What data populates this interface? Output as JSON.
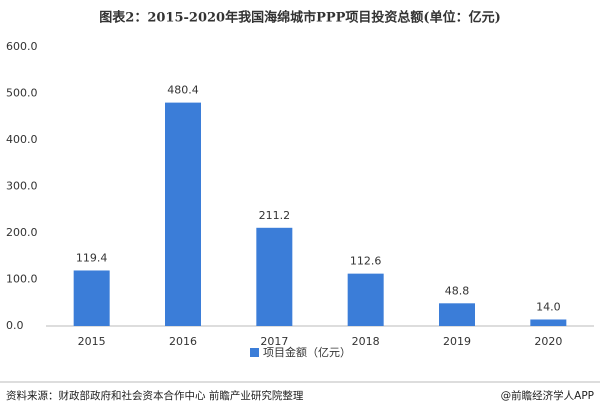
{
  "chart_data": {
    "type": "bar",
    "title": "图表2：2015-2020年我国海绵城市PPP项目投资总额(单位：亿元)",
    "categories": [
      "2015",
      "2016",
      "2017",
      "2018",
      "2019",
      "2020"
    ],
    "series": [
      {
        "name": "项目金额（亿元）",
        "color": "#3b7dd8",
        "values": [
          119.4,
          480.4,
          211.2,
          112.6,
          48.8,
          14.0
        ],
        "value_labels": [
          "119.4",
          "480.4",
          "211.2",
          "112.6",
          "48.8",
          "14.0"
        ]
      }
    ],
    "ylim": [
      0,
      600
    ],
    "yticks": [
      {
        "value": 0,
        "label": "0.0"
      },
      {
        "value": 100,
        "label": "100.0"
      },
      {
        "value": 200,
        "label": "200.0"
      },
      {
        "value": 300,
        "label": "300.0"
      },
      {
        "value": 400,
        "label": "400.0"
      },
      {
        "value": 500,
        "label": "500.0"
      },
      {
        "value": 600,
        "label": "600.0"
      }
    ],
    "grid": false,
    "legend": "bottom"
  },
  "footer": {
    "source": "资料来源：财政部政府和社会资本合作中心 前瞻产业研究院整理",
    "credit": "@前瞻经济学人APP"
  }
}
